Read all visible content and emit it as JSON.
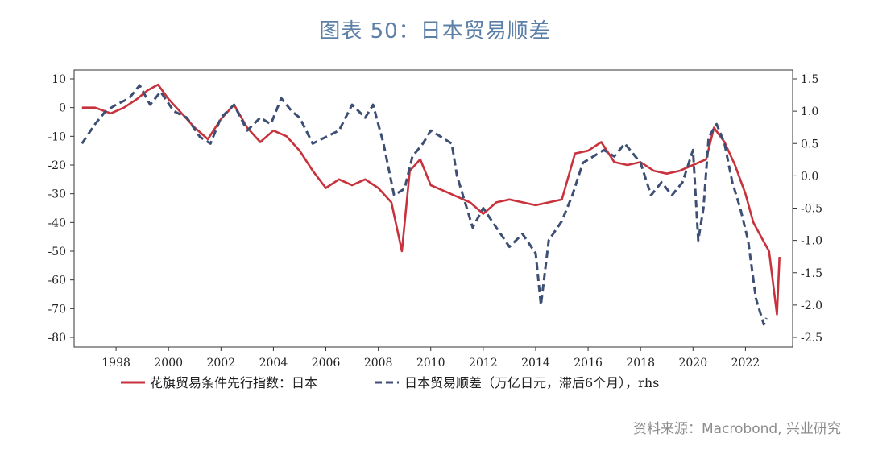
{
  "header": {
    "title": "图表 50：日本贸易顺差"
  },
  "footer": {
    "source": "资料来源：Macrobond, 兴业研究"
  },
  "chart_data": {
    "type": "line",
    "x_ticks": [
      "1998",
      "2000",
      "2002",
      "2004",
      "2006",
      "2008",
      "2010",
      "2012",
      "2014",
      "2016",
      "2018",
      "2020",
      "2022"
    ],
    "y_left": {
      "ylim": [
        -80,
        10
      ],
      "ticks": [
        "10",
        "0",
        "-10",
        "-20",
        "-30",
        "-40",
        "-50",
        "-60",
        "-70",
        "-80"
      ]
    },
    "y_right": {
      "ylim": [
        -2.5,
        1.5
      ],
      "ticks": [
        "1.5",
        "1.0",
        "0.5",
        "0.0",
        "-0.5",
        "-1.0",
        "-1.5",
        "-2.0",
        "-2.5"
      ]
    },
    "legend": {
      "placement": "bottom"
    },
    "series": [
      {
        "name": "花旗贸易条件先行指数：日本",
        "axis": "left",
        "color": "#c8323c",
        "style": "solid",
        "x": [
          1996.7,
          1997.2,
          1997.8,
          1998.3,
          1998.8,
          1999.2,
          1999.6,
          2000.0,
          2000.5,
          2001.0,
          2001.5,
          2002.0,
          2002.5,
          2003.0,
          2003.5,
          2004.0,
          2004.5,
          2005.0,
          2005.5,
          2006.0,
          2006.5,
          2007.0,
          2007.5,
          2008.0,
          2008.5,
          2008.9,
          2009.2,
          2009.6,
          2010.0,
          2010.5,
          2011.0,
          2011.5,
          2012.0,
          2012.5,
          2013.0,
          2013.5,
          2014.0,
          2014.5,
          2015.0,
          2015.5,
          2016.0,
          2016.5,
          2017.0,
          2017.5,
          2018.0,
          2018.5,
          2019.0,
          2019.5,
          2020.0,
          2020.5,
          2020.8,
          2021.2,
          2021.6,
          2022.0,
          2022.3,
          2022.6,
          2022.9,
          2023.2,
          2023.3
        ],
        "y": [
          0,
          0,
          -2,
          0,
          3,
          6,
          8,
          3,
          -2,
          -7,
          -11,
          -4,
          1,
          -7,
          -12,
          -8,
          -10,
          -15,
          -22,
          -28,
          -25,
          -27,
          -25,
          -28,
          -33,
          -50,
          -22,
          -18,
          -27,
          -29,
          -31,
          -33,
          -37,
          -33,
          -32,
          -33,
          -34,
          -33,
          -32,
          -16,
          -15,
          -12,
          -19,
          -20,
          -19,
          -22,
          -23,
          -22,
          -20,
          -18,
          -7,
          -12,
          -20,
          -30,
          -40,
          -45,
          -50,
          -72,
          -52
        ]
      },
      {
        "name": "日本贸易顺差（万亿日元，滞后6个月），rhs",
        "axis": "right",
        "color": "#3d4f74",
        "style": "dashed",
        "x": [
          1996.7,
          1997.2,
          1997.6,
          1998.0,
          1998.5,
          1998.9,
          1999.3,
          1999.7,
          2000.2,
          2000.7,
          2001.2,
          2001.6,
          2002.0,
          2002.5,
          2003.0,
          2003.5,
          2003.9,
          2004.3,
          2004.7,
          2005.0,
          2005.5,
          2006.0,
          2006.5,
          2007.0,
          2007.5,
          2007.8,
          2008.2,
          2008.6,
          2009.0,
          2009.3,
          2009.7,
          2010.0,
          2010.4,
          2010.8,
          2011.0,
          2011.3,
          2011.6,
          2012.0,
          2012.5,
          2013.0,
          2013.5,
          2014.0,
          2014.2,
          2014.5,
          2015.0,
          2015.4,
          2015.8,
          2016.2,
          2016.6,
          2017.0,
          2017.4,
          2017.8,
          2018.0,
          2018.4,
          2018.8,
          2019.2,
          2019.6,
          2020.0,
          2020.2,
          2020.4,
          2020.6,
          2020.9,
          2021.2,
          2021.5,
          2021.8,
          2022.1,
          2022.4,
          2022.7,
          2022.8
        ],
        "y": [
          0.5,
          0.8,
          1.0,
          1.1,
          1.2,
          1.4,
          1.1,
          1.3,
          1.0,
          0.9,
          0.6,
          0.5,
          0.9,
          1.1,
          0.7,
          0.9,
          0.8,
          1.2,
          1.0,
          0.9,
          0.5,
          0.6,
          0.7,
          1.1,
          0.9,
          1.1,
          0.5,
          -0.3,
          -0.2,
          0.3,
          0.5,
          0.7,
          0.6,
          0.5,
          0.0,
          -0.4,
          -0.8,
          -0.5,
          -0.8,
          -1.1,
          -0.9,
          -1.2,
          -2.0,
          -1.0,
          -0.7,
          -0.3,
          0.2,
          0.3,
          0.4,
          0.3,
          0.5,
          0.3,
          0.2,
          -0.3,
          -0.1,
          -0.3,
          -0.1,
          0.4,
          -1.0,
          -0.5,
          0.6,
          0.8,
          0.5,
          -0.1,
          -0.5,
          -1.0,
          -1.9,
          -2.3,
          -2.2
        ]
      }
    ]
  }
}
